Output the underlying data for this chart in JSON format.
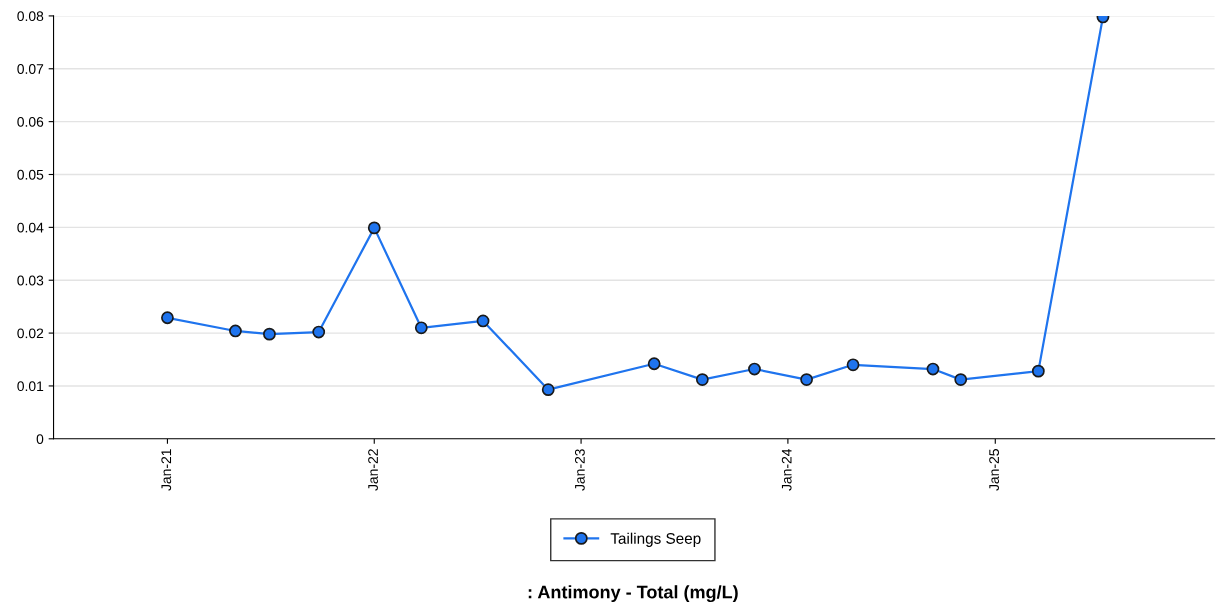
{
  "chart_data": {
    "type": "line",
    "title": ": Antimony - Total (mg/L)",
    "x": [
      "2021-01-01",
      "2021-05-01",
      "2021-06-30",
      "2021-09-25",
      "2022-01-01",
      "2022-03-25",
      "2022-07-12",
      "2022-11-04",
      "2023-05-10",
      "2023-08-03",
      "2023-11-03",
      "2024-02-03",
      "2024-04-25",
      "2024-09-13",
      "2024-11-01",
      "2025-03-18",
      "2025-07-10"
    ],
    "series": [
      {
        "name": "Tailings Seep",
        "color": "#1f74ee",
        "values": [
          0.0229,
          0.0204,
          0.0198,
          0.0202,
          0.0399,
          0.021,
          0.0223,
          0.0093,
          0.0142,
          0.0112,
          0.0132,
          0.0112,
          0.014,
          0.0132,
          0.0112,
          0.0128,
          0.0798
        ]
      }
    ],
    "xlim": [
      "2020-06-14",
      "2026-01-23"
    ],
    "xticks": [
      {
        "value": "2021-01-01",
        "label": "Jan-21"
      },
      {
        "value": "2022-01-01",
        "label": "Jan-22"
      },
      {
        "value": "2023-01-01",
        "label": "Jan-23"
      },
      {
        "value": "2024-01-01",
        "label": "Jan-24"
      },
      {
        "value": "2025-01-01",
        "label": "Jan-25"
      }
    ],
    "ylim": [
      0,
      0.08
    ],
    "yticks": [
      0,
      0.01,
      0.02,
      0.03,
      0.04,
      0.05,
      0.06,
      0.07,
      0.08
    ],
    "grid": "y",
    "legend": "bottom",
    "marker": "circle",
    "line_style": "solid"
  }
}
